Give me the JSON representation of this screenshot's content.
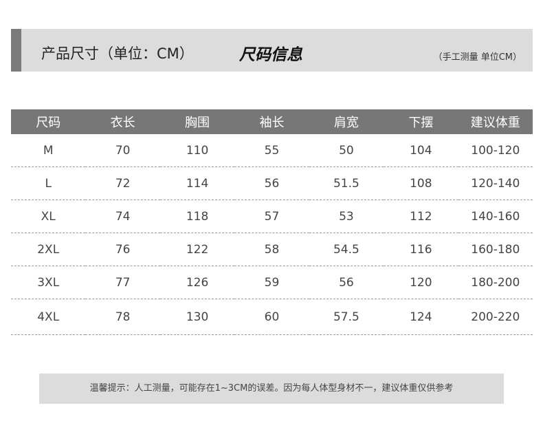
{
  "header": {
    "left_label": "产品尺寸（单位：CM）",
    "title": "尺码信息",
    "right_note": "（手工测量 单位CM）"
  },
  "table": {
    "columns": [
      "尺码",
      "衣长",
      "胸围",
      "袖长",
      "肩宽",
      "下摆",
      "建议体重"
    ],
    "rows": [
      [
        "M",
        "70",
        "110",
        "55",
        "50",
        "104",
        "100-120"
      ],
      [
        "L",
        "72",
        "114",
        "56",
        "51.5",
        "108",
        "120-140"
      ],
      [
        "XL",
        "74",
        "118",
        "57",
        "53",
        "112",
        "140-160"
      ],
      [
        "2XL",
        "76",
        "122",
        "58",
        "54.5",
        "116",
        "160-180"
      ],
      [
        "3XL",
        "77",
        "126",
        "59",
        "56",
        "120",
        "180-200"
      ],
      [
        "4XL",
        "78",
        "130",
        "60",
        "57.5",
        "124",
        "200-220"
      ]
    ]
  },
  "note": "温馨提示：人工测量，可能存在1~3CM的误差。因为每人体型身材不一，建议体重仅供参考"
}
